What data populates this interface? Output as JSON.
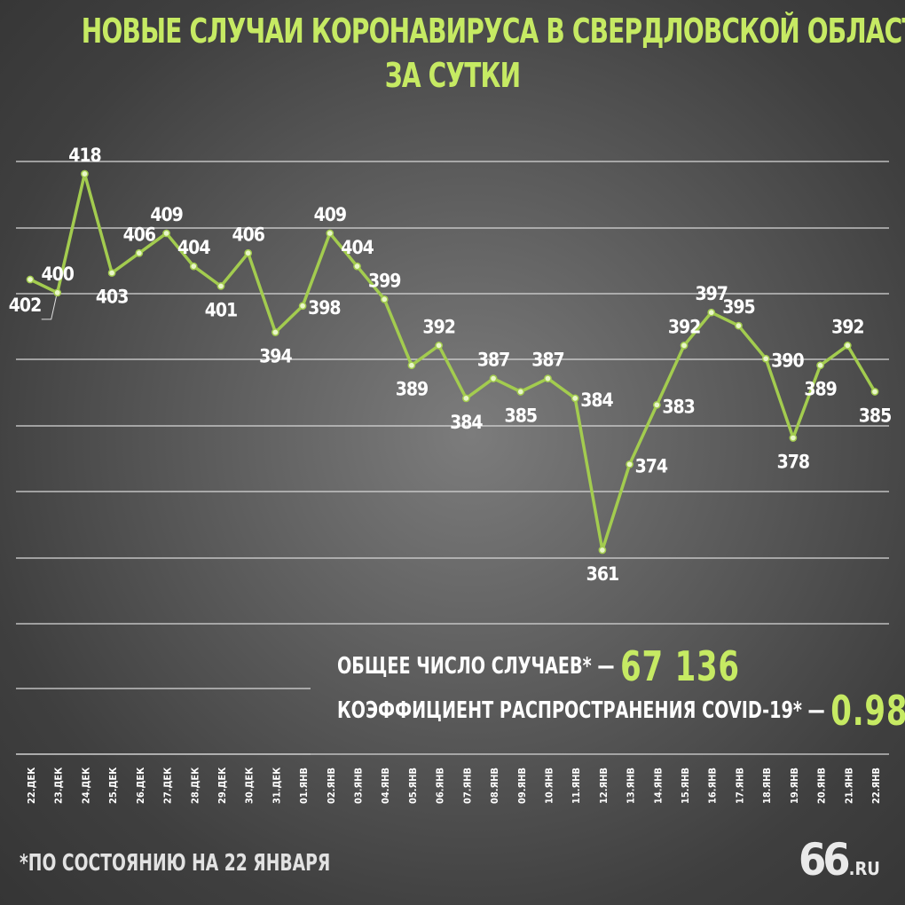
{
  "title": {
    "line1": "НОВЫЕ СЛУЧАИ КОРОНАВИРУСА В СВЕРДЛОВСКОЙ ОБЛАСТИ",
    "line2": "ЗА СУТКИ"
  },
  "stats": {
    "total_label": "ОБЩЕЕ ЧИСЛО СЛУЧАЕВ* —",
    "total_value": "67 136",
    "r_label": "КОЭФФИЦИЕНТ РАСПРОСТРАНЕНИЯ COVID-19* —",
    "r_value": "0.98"
  },
  "footnote": "*ПО СОСТОЯНИЮ НА 22 ЯНВАРЯ",
  "logo": {
    "main": "66",
    "suffix": ".RU"
  },
  "colors": {
    "accent": "#c6ea63",
    "line": "#a3cc4f",
    "text": "#ffffff"
  },
  "chart_data": {
    "type": "line",
    "categories": [
      "22.ДЕК",
      "23.ДЕК",
      "24.ДЕК",
      "25.ДЕК",
      "26.ДЕК",
      "27.ДЕК",
      "28.ДЕК",
      "29.ДЕК",
      "30.ДЕК",
      "31.ДЕК",
      "01.ЯНВ",
      "02.ЯНВ",
      "03.ЯНВ",
      "04.ЯНВ",
      "05.ЯНВ",
      "06.ЯНВ",
      "07.ЯНВ",
      "08.ЯНВ",
      "09.ЯНВ",
      "10.ЯНВ",
      "11.ЯНВ",
      "12.ЯНВ",
      "13.ЯНВ",
      "14.ЯНВ",
      "15.ЯНВ",
      "16.ЯНВ",
      "17.ЯНВ",
      "18.ЯНВ",
      "19.ЯНВ",
      "20.ЯНВ",
      "21.ЯНВ",
      "22.ЯНВ"
    ],
    "values": [
      402,
      400,
      418,
      403,
      406,
      409,
      404,
      401,
      406,
      394,
      398,
      409,
      404,
      399,
      389,
      392,
      384,
      387,
      385,
      387,
      384,
      361,
      374,
      383,
      392,
      397,
      395,
      390,
      378,
      389,
      392,
      385
    ],
    "label_position": [
      "below",
      "above",
      "above",
      "below",
      "above",
      "above",
      "above",
      "below",
      "above",
      "below",
      "right",
      "above",
      "above",
      "above",
      "below",
      "above",
      "below",
      "above",
      "below",
      "above",
      "right",
      "below",
      "right",
      "right",
      "above",
      "above",
      "above",
      "right",
      "below",
      "below",
      "above",
      "below"
    ],
    "ylim": [
      356,
      420
    ],
    "grid": true,
    "legend": "none"
  }
}
